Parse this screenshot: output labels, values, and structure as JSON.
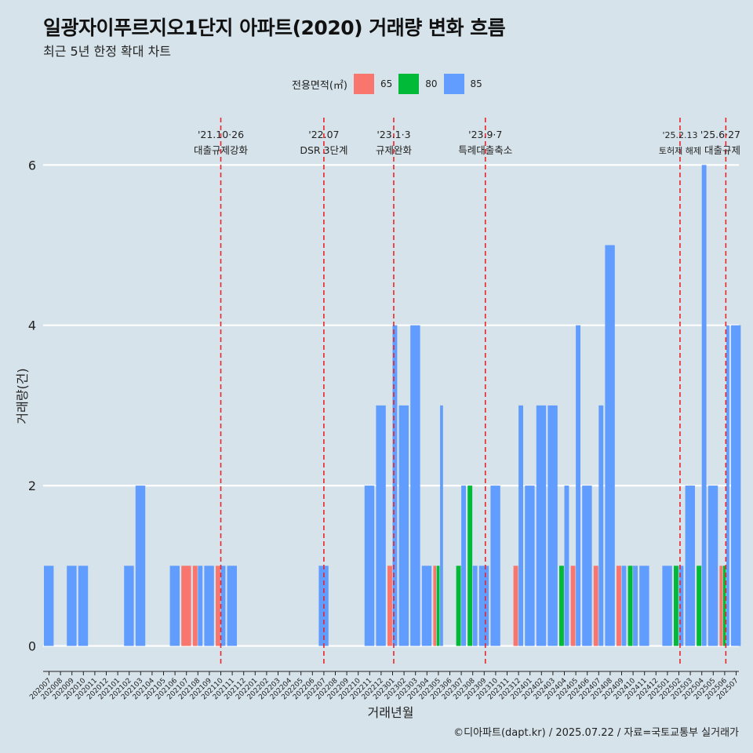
{
  "title": "일광자이푸르지오1단지 아파트(2020) 거래량 변화 흐름",
  "subtitle": "최근 5년 한정 확대 차트",
  "caption": "©디아파트(dapt.kr) / 2025.07.22 / 자료=국토교통부 실거래가",
  "legend": {
    "title": "전용면적(㎡)",
    "items": [
      {
        "label": "65",
        "color": "#f8766d"
      },
      {
        "label": "80",
        "color": "#00ba38"
      },
      {
        "label": "85",
        "color": "#619cff"
      }
    ]
  },
  "chart_data": {
    "type": "bar",
    "stacking": "dodge",
    "xlabel": "거래년월",
    "ylabel": "거래량(건)",
    "ylim": [
      -0.5,
      6.6
    ],
    "yticks": [
      0,
      2,
      4,
      6
    ],
    "grid": true,
    "legend_position": "top",
    "categories": [
      "202007",
      "202008",
      "202009",
      "202010",
      "202011",
      "202012",
      "202101",
      "202102",
      "202103",
      "202104",
      "202105",
      "202106",
      "202107",
      "202108",
      "202109",
      "202110",
      "202111",
      "202112",
      "202201",
      "202202",
      "202203",
      "202204",
      "202205",
      "202206",
      "202207",
      "202208",
      "202209",
      "202210",
      "202211",
      "202212",
      "202301",
      "202302",
      "202303",
      "202304",
      "202305",
      "202306",
      "202307",
      "202308",
      "202309",
      "202310",
      "202311",
      "202312",
      "202401",
      "202402",
      "202403",
      "202404",
      "202405",
      "202406",
      "202407",
      "202408",
      "202409",
      "202410",
      "202411",
      "202412",
      "202501",
      "202502",
      "202503",
      "202504",
      "202505",
      "202506",
      "202507"
    ],
    "series": [
      {
        "name": "65",
        "color": "#f8766d",
        "points": [
          [
            "202107",
            1
          ],
          [
            "202108",
            1
          ],
          [
            "202110",
            1
          ],
          [
            "202301",
            1
          ],
          [
            "202305",
            1
          ],
          [
            "202312",
            1
          ],
          [
            "202405",
            1
          ],
          [
            "202407",
            1
          ],
          [
            "202409",
            1
          ],
          [
            "202506",
            1
          ]
        ]
      },
      {
        "name": "80",
        "color": "#00ba38",
        "points": [
          [
            "202305",
            1
          ],
          [
            "202307",
            1
          ],
          [
            "202308",
            2
          ],
          [
            "202404",
            1
          ],
          [
            "202410",
            1
          ],
          [
            "202502",
            1
          ],
          [
            "202504",
            1
          ],
          [
            "202506",
            1
          ]
        ]
      },
      {
        "name": "85",
        "color": "#619cff",
        "points": [
          [
            "202007",
            1
          ],
          [
            "202009",
            1
          ],
          [
            "202010",
            1
          ],
          [
            "202102",
            1
          ],
          [
            "202103",
            2
          ],
          [
            "202106",
            1
          ],
          [
            "202108",
            1
          ],
          [
            "202109",
            1
          ],
          [
            "202110",
            1
          ],
          [
            "202111",
            1
          ],
          [
            "202207",
            1
          ],
          [
            "202211",
            2
          ],
          [
            "202212",
            3
          ],
          [
            "202301",
            4
          ],
          [
            "202302",
            3
          ],
          [
            "202303",
            4
          ],
          [
            "202304",
            1
          ],
          [
            "202305",
            3
          ],
          [
            "202307",
            2
          ],
          [
            "202308",
            1
          ],
          [
            "202309",
            1
          ],
          [
            "202310",
            2
          ],
          [
            "202312",
            3
          ],
          [
            "202401",
            2
          ],
          [
            "202402",
            3
          ],
          [
            "202403",
            3
          ],
          [
            "202404",
            2
          ],
          [
            "202405",
            4
          ],
          [
            "202406",
            2
          ],
          [
            "202407",
            3
          ],
          [
            "202408",
            5
          ],
          [
            "202409",
            1
          ],
          [
            "202410",
            1
          ],
          [
            "202411",
            1
          ],
          [
            "202501",
            1
          ],
          [
            "202502",
            1
          ],
          [
            "202503",
            2
          ],
          [
            "202504",
            6
          ],
          [
            "202505",
            2
          ],
          [
            "202506",
            4
          ],
          [
            "202507",
            4
          ]
        ]
      }
    ],
    "annotations": [
      {
        "x": 15.0,
        "date": "'21.10·26",
        "label": "대출규제강화"
      },
      {
        "x": 24.0,
        "date": "'22.07",
        "label": "DSR 3단계"
      },
      {
        "x": 30.1,
        "date": "'23.1·3",
        "label": "규제완화"
      },
      {
        "x": 38.1,
        "date": "'23.9·7",
        "label": "특례대출축소"
      },
      {
        "x": 55.1,
        "date": "'25.2.13",
        "label": "토허제 해제"
      },
      {
        "x": 59.1,
        "date": "'25.6·27",
        "label": "대출규제"
      }
    ]
  }
}
